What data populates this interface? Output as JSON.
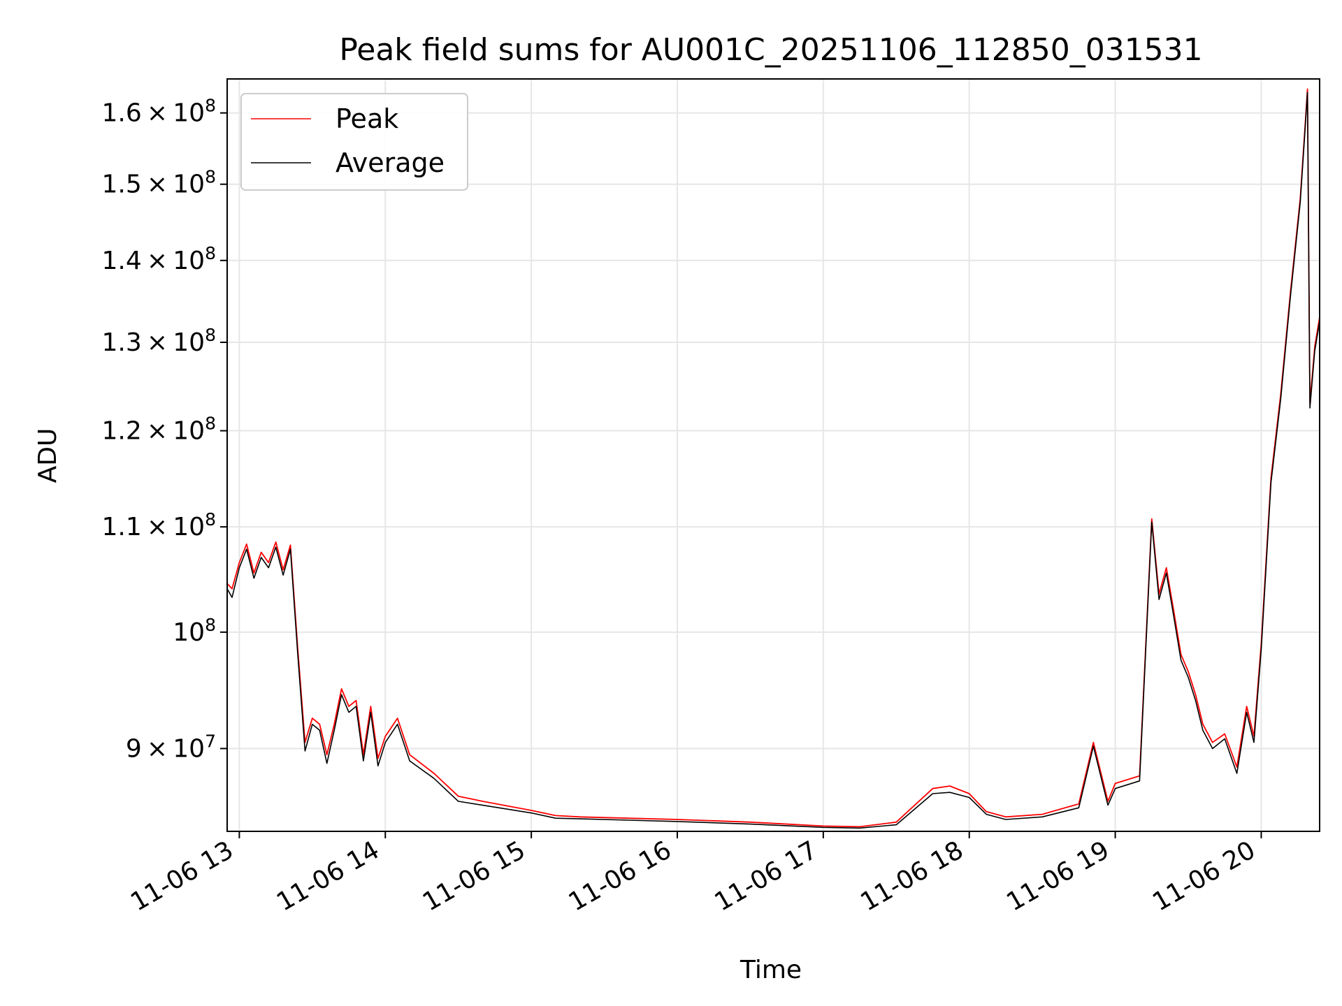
{
  "chart_data": {
    "type": "line",
    "title": "Peak field sums for AU001C_20251106_112850_031531",
    "xlabel": "Time",
    "ylabel": "ADU",
    "yscale": "log",
    "ylim": [
      83500000,
      165000000
    ],
    "xlim": [
      "2025-11-06 12:55",
      "2025-11-06 20:24"
    ],
    "grid": true,
    "legend_position": "top-left",
    "x_ticks": [
      {
        "t": "2025-11-06 13:00",
        "label": "11-06 13"
      },
      {
        "t": "2025-11-06 14:00",
        "label": "11-06 14"
      },
      {
        "t": "2025-11-06 15:00",
        "label": "11-06 15"
      },
      {
        "t": "2025-11-06 16:00",
        "label": "11-06 16"
      },
      {
        "t": "2025-11-06 17:00",
        "label": "11-06 17"
      },
      {
        "t": "2025-11-06 18:00",
        "label": "11-06 18"
      },
      {
        "t": "2025-11-06 19:00",
        "label": "11-06 19"
      },
      {
        "t": "2025-11-06 20:00",
        "label": "11-06 20"
      }
    ],
    "y_ticks": [
      {
        "value": 90000000,
        "mantissa": "9",
        "exponent": "7"
      },
      {
        "value": 100000000,
        "mantissa": "",
        "exponent": "8"
      },
      {
        "value": 110000000,
        "mantissa": "1.1",
        "exponent": "8"
      },
      {
        "value": 120000000,
        "mantissa": "1.2",
        "exponent": "8"
      },
      {
        "value": 130000000,
        "mantissa": "1.3",
        "exponent": "8"
      },
      {
        "value": 140000000,
        "mantissa": "1.4",
        "exponent": "8"
      },
      {
        "value": 150000000,
        "mantissa": "1.5",
        "exponent": "8"
      },
      {
        "value": 160000000,
        "mantissa": "1.6",
        "exponent": "8"
      }
    ],
    "series": [
      {
        "name": "Peak",
        "color": "#ff0000",
        "x": [
          "2025-11-06 12:55",
          "2025-11-06 12:57",
          "2025-11-06 13:00",
          "2025-11-06 13:03",
          "2025-11-06 13:06",
          "2025-11-06 13:09",
          "2025-11-06 13:12",
          "2025-11-06 13:15",
          "2025-11-06 13:18",
          "2025-11-06 13:21",
          "2025-11-06 13:24",
          "2025-11-06 13:27",
          "2025-11-06 13:30",
          "2025-11-06 13:33",
          "2025-11-06 13:36",
          "2025-11-06 13:39",
          "2025-11-06 13:42",
          "2025-11-06 13:45",
          "2025-11-06 13:48",
          "2025-11-06 13:51",
          "2025-11-06 13:54",
          "2025-11-06 13:57",
          "2025-11-06 14:00",
          "2025-11-06 14:05",
          "2025-11-06 14:10",
          "2025-11-06 14:20",
          "2025-11-06 14:30",
          "2025-11-06 14:40",
          "2025-11-06 15:00",
          "2025-11-06 15:10",
          "2025-11-06 15:20",
          "2025-11-06 15:40",
          "2025-11-06 16:00",
          "2025-11-06 16:30",
          "2025-11-06 17:00",
          "2025-11-06 17:15",
          "2025-11-06 17:30",
          "2025-11-06 17:45",
          "2025-11-06 17:52",
          "2025-11-06 18:00",
          "2025-11-06 18:07",
          "2025-11-06 18:15",
          "2025-11-06 18:30",
          "2025-11-06 18:45",
          "2025-11-06 18:51",
          "2025-11-06 18:57",
          "2025-11-06 19:00",
          "2025-11-06 19:10",
          "2025-11-06 19:15",
          "2025-11-06 19:18",
          "2025-11-06 19:21",
          "2025-11-06 19:24",
          "2025-11-06 19:27",
          "2025-11-06 19:30",
          "2025-11-06 19:33",
          "2025-11-06 19:36",
          "2025-11-06 19:40",
          "2025-11-06 19:45",
          "2025-11-06 19:50",
          "2025-11-06 19:54",
          "2025-11-06 19:57",
          "2025-11-06 20:00",
          "2025-11-06 20:04",
          "2025-11-06 20:08",
          "2025-11-06 20:12",
          "2025-11-06 20:16",
          "2025-11-06 20:18",
          "2025-11-06 20:19",
          "2025-11-06 20:20",
          "2025-11-06 20:22",
          "2025-11-06 20:24"
        ],
        "values": [
          104500000,
          104000000,
          106500000,
          108300000,
          105500000,
          107500000,
          106500000,
          108500000,
          105800000,
          108200000,
          98500000,
          90500000,
          92500000,
          92000000,
          89500000,
          92000000,
          95000000,
          93500000,
          94000000,
          89500000,
          93500000,
          89200000,
          91000000,
          92500000,
          89500000,
          88000000,
          86200000,
          85800000,
          85100000,
          84700000,
          84600000,
          84500000,
          84400000,
          84200000,
          83900000,
          83850000,
          84200000,
          86800000,
          87000000,
          86400000,
          85000000,
          84600000,
          84800000,
          85600000,
          90500000,
          85800000,
          87200000,
          87800000,
          110800000,
          103500000,
          106000000,
          102000000,
          98000000,
          96500000,
          94500000,
          92000000,
          90500000,
          91200000,
          88500000,
          93500000,
          91000000,
          99000000,
          115000000,
          124000000,
          136000000,
          148000000,
          158000000,
          163500000,
          123000000,
          129500000,
          133000000
        ]
      },
      {
        "name": "Average",
        "color": "#000000",
        "x": [
          "2025-11-06 12:55",
          "2025-11-06 12:57",
          "2025-11-06 13:00",
          "2025-11-06 13:03",
          "2025-11-06 13:06",
          "2025-11-06 13:09",
          "2025-11-06 13:12",
          "2025-11-06 13:15",
          "2025-11-06 13:18",
          "2025-11-06 13:21",
          "2025-11-06 13:24",
          "2025-11-06 13:27",
          "2025-11-06 13:30",
          "2025-11-06 13:33",
          "2025-11-06 13:36",
          "2025-11-06 13:39",
          "2025-11-06 13:42",
          "2025-11-06 13:45",
          "2025-11-06 13:48",
          "2025-11-06 13:51",
          "2025-11-06 13:54",
          "2025-11-06 13:57",
          "2025-11-06 14:00",
          "2025-11-06 14:05",
          "2025-11-06 14:10",
          "2025-11-06 14:20",
          "2025-11-06 14:30",
          "2025-11-06 14:40",
          "2025-11-06 15:00",
          "2025-11-06 15:10",
          "2025-11-06 15:20",
          "2025-11-06 15:40",
          "2025-11-06 16:00",
          "2025-11-06 16:30",
          "2025-11-06 17:00",
          "2025-11-06 17:15",
          "2025-11-06 17:30",
          "2025-11-06 17:45",
          "2025-11-06 17:52",
          "2025-11-06 18:00",
          "2025-11-06 18:07",
          "2025-11-06 18:15",
          "2025-11-06 18:30",
          "2025-11-06 18:45",
          "2025-11-06 18:51",
          "2025-11-06 18:57",
          "2025-11-06 19:00",
          "2025-11-06 19:10",
          "2025-11-06 19:15",
          "2025-11-06 19:18",
          "2025-11-06 19:21",
          "2025-11-06 19:24",
          "2025-11-06 19:27",
          "2025-11-06 19:30",
          "2025-11-06 19:33",
          "2025-11-06 19:36",
          "2025-11-06 19:40",
          "2025-11-06 19:45",
          "2025-11-06 19:50",
          "2025-11-06 19:54",
          "2025-11-06 19:57",
          "2025-11-06 20:00",
          "2025-11-06 20:04",
          "2025-11-06 20:08",
          "2025-11-06 20:12",
          "2025-11-06 20:16",
          "2025-11-06 20:18",
          "2025-11-06 20:19",
          "2025-11-06 20:20",
          "2025-11-06 20:22",
          "2025-11-06 20:24"
        ],
        "values": [
          104000000,
          103200000,
          106000000,
          107800000,
          105000000,
          107000000,
          106000000,
          108000000,
          105300000,
          107800000,
          98000000,
          89800000,
          92000000,
          91500000,
          88800000,
          91500000,
          94500000,
          93000000,
          93500000,
          89000000,
          93000000,
          88600000,
          90500000,
          92000000,
          89000000,
          87600000,
          85800000,
          85500000,
          84900000,
          84500000,
          84450000,
          84350000,
          84250000,
          84050000,
          83800000,
          83750000,
          84000000,
          86400000,
          86500000,
          86100000,
          84800000,
          84400000,
          84600000,
          85300000,
          90200000,
          85500000,
          86800000,
          87400000,
          110500000,
          103000000,
          105500000,
          101500000,
          97500000,
          96000000,
          94000000,
          91500000,
          90000000,
          90800000,
          88000000,
          93000000,
          90500000,
          98500000,
          114500000,
          123500000,
          135500000,
          147500000,
          157500000,
          163000000,
          122500000,
          129000000,
          132500000
        ]
      }
    ]
  }
}
